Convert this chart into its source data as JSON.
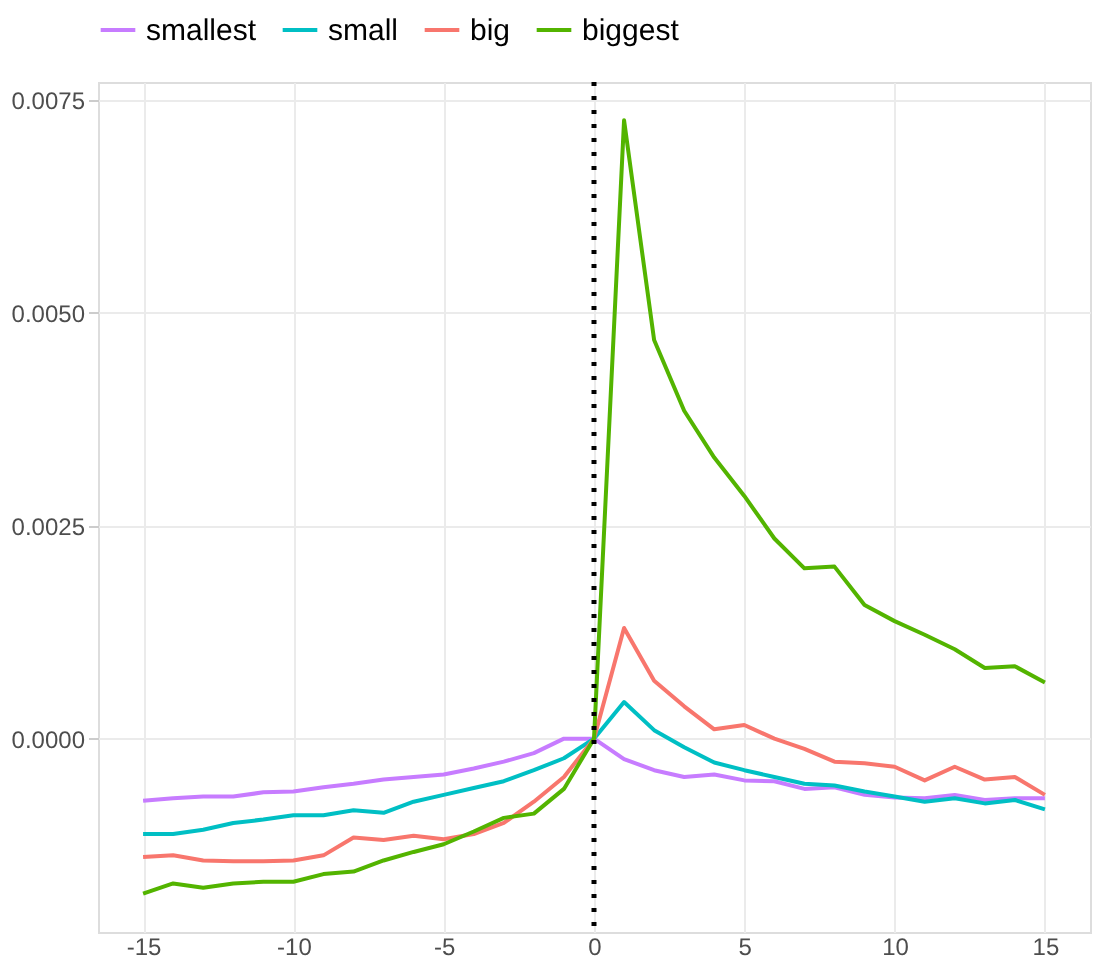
{
  "chart_data": {
    "type": "line",
    "x": [
      -15,
      -14,
      -13,
      -12,
      -11,
      -10,
      -9,
      -8,
      -7,
      -6,
      -5,
      -4,
      -3,
      -2,
      -1,
      0,
      1,
      2,
      3,
      4,
      5,
      6,
      7,
      8,
      9,
      10,
      11,
      12,
      13,
      14,
      15
    ],
    "series": [
      {
        "name": "smallest",
        "color": "#c77cff",
        "values": [
          -0.00073,
          -0.0007,
          -0.00068,
          -0.00068,
          -0.00063,
          -0.00062,
          -0.00057,
          -0.00053,
          -0.00048,
          -0.00045,
          -0.00042,
          -0.00035,
          -0.00027,
          -0.00017,
          0,
          0,
          -0.00024,
          -0.00037,
          -0.00045,
          -0.00042,
          -0.00049,
          -0.0005,
          -0.00059,
          -0.00057,
          -0.00066,
          -0.00069,
          -0.0007,
          -0.00066,
          -0.00072,
          -0.0007,
          -0.0007
        ]
      },
      {
        "name": "small",
        "color": "#00bfc4",
        "values": [
          -0.00112,
          -0.00112,
          -0.00107,
          -0.00099,
          -0.00095,
          -0.0009,
          -0.0009,
          -0.00084,
          -0.00087,
          -0.00074,
          -0.00066,
          -0.00058,
          -0.0005,
          -0.00037,
          -0.00023,
          0,
          0.00043,
          0.0001,
          -0.0001,
          -0.00028,
          -0.00037,
          -0.00045,
          -0.00053,
          -0.00055,
          -0.00062,
          -0.00068,
          -0.00074,
          -0.0007,
          -0.00076,
          -0.00072,
          -0.00083
        ]
      },
      {
        "name": "big",
        "color": "#f8766d",
        "values": [
          -0.00139,
          -0.00137,
          -0.00143,
          -0.00144,
          -0.00144,
          -0.00143,
          -0.00137,
          -0.00116,
          -0.00119,
          -0.00114,
          -0.00118,
          -0.00112,
          -0.00099,
          -0.00074,
          -0.00045,
          0,
          0.0013,
          0.00068,
          0.00038,
          0.00011,
          0.00016,
          0,
          -0.00012,
          -0.00027,
          -0.00029,
          -0.00033,
          -0.00049,
          -0.00033,
          -0.00048,
          -0.00045,
          -0.00066
        ]
      },
      {
        "name": "biggest",
        "color": "#53b400",
        "values": [
          -0.00182,
          -0.0017,
          -0.00175,
          -0.0017,
          -0.00168,
          -0.00168,
          -0.00159,
          -0.00156,
          -0.00143,
          -0.00133,
          -0.00124,
          -0.00109,
          -0.00093,
          -0.00088,
          -0.00059,
          0,
          0.00726,
          0.00468,
          0.00385,
          0.0033,
          0.00285,
          0.00235,
          0.002,
          0.00202,
          0.00157,
          0.00138,
          0.00122,
          0.00105,
          0.00083,
          0.00085,
          0.00066
        ]
      }
    ],
    "xlim": [
      -16.5,
      16.5
    ],
    "xticks": [
      -15,
      -10,
      -5,
      0,
      5,
      10,
      15
    ],
    "ylim": [
      -0.00227,
      0.00771
    ],
    "yticks": [
      {
        "value": 0,
        "label": "0.0000"
      },
      {
        "value": 0.0025,
        "label": "0.0025"
      },
      {
        "value": 0.005,
        "label": "0.0050"
      },
      {
        "value": 0.0075,
        "label": "0.0075"
      }
    ],
    "ref_lines": [
      {
        "axis": "x",
        "value": 0,
        "color": "#000000",
        "line_style": "dotted"
      }
    ],
    "grid": true,
    "legend": "top",
    "marker": "none",
    "line_style": "solid"
  }
}
